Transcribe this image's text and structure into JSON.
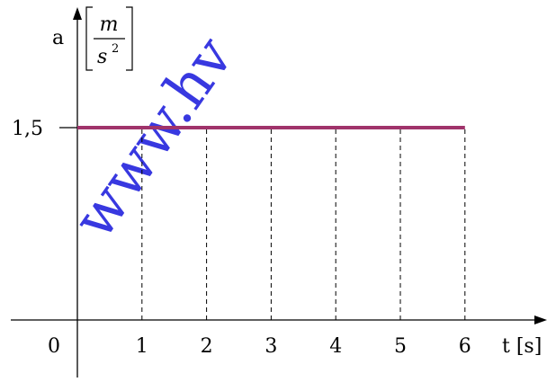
{
  "watermark": "www.hv",
  "colors": {
    "axis": "#000000",
    "series": "#a0336b",
    "watermark": "#2222dd"
  },
  "chart_data": {
    "type": "line",
    "x": [
      0,
      6
    ],
    "y": [
      1.5,
      1.5
    ],
    "xticks": [
      1,
      2,
      3,
      4,
      5,
      6
    ],
    "xtick_labels": [
      "1",
      "2",
      "3",
      "4",
      "5",
      "6"
    ],
    "origin_label": "0",
    "yticks": [
      1.5
    ],
    "ytick_labels": [
      "1,5"
    ],
    "xlabel": "t [s]",
    "ylabel_symbol": "a",
    "ylabel_unit_numerator": "m",
    "ylabel_unit_denominator": "s",
    "ylabel_unit_exponent": "2",
    "xlim": [
      0,
      7.2
    ],
    "ylim": [
      0,
      2.9
    ],
    "dashed_verticals_at": [
      1,
      2,
      3,
      4,
      5,
      6
    ],
    "grid": false
  }
}
